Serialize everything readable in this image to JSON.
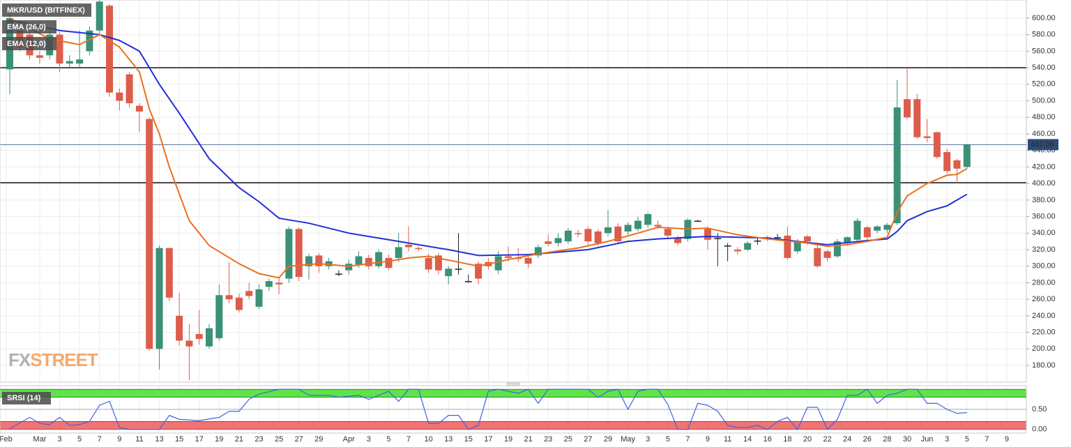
{
  "chart_data": {
    "type": "candlestick",
    "legend": [
      "MKR/USD (BITFINEX)",
      "EMA (26,0)",
      "EMA (12,0)"
    ],
    "watermark": [
      "FX",
      "STREET"
    ],
    "up_color": "#3a9177",
    "down_color": "#dc5d4b",
    "flat_color": "#222222",
    "open": [
      538,
      585,
      580,
      555,
      555,
      580,
      545,
      545,
      560,
      585,
      615,
      510,
      532,
      494,
      478,
      200,
      322,
      240,
      210,
      218,
      203,
      213,
      265,
      262,
      270,
      251,
      275,
      280,
      285,
      345,
      300,
      313,
      300,
      291,
      295,
      302,
      310,
      300,
      310,
      310,
      326,
      322,
      310,
      313,
      288,
      297,
      282,
      303,
      305,
      295,
      312,
      310,
      310,
      313,
      330,
      328,
      330,
      340,
      345,
      342,
      340,
      348,
      342,
      345,
      350,
      350,
      345,
      334,
      333,
      355,
      345,
      334,
      325,
      320,
      320,
      331,
      335,
      335,
      337,
      318,
      336,
      322,
      318,
      312,
      328,
      332,
      347,
      343,
      344,
      352,
      502,
      502,
      457,
      462,
      438,
      428,
      420
    ],
    "high": [
      612,
      590,
      585,
      560,
      585,
      583,
      555,
      585,
      590,
      622,
      617,
      515,
      535,
      497,
      480,
      325,
      322,
      268,
      230,
      247,
      230,
      278,
      305,
      267,
      280,
      278,
      285,
      286,
      348,
      347,
      315,
      316,
      310,
      295,
      308,
      318,
      314,
      320,
      314,
      340,
      348,
      324,
      315,
      316,
      300,
      340,
      290,
      306,
      310,
      318,
      324,
      322,
      314,
      326,
      338,
      340,
      346,
      344,
      348,
      345,
      368,
      352,
      353,
      360,
      365,
      355,
      348,
      337,
      358,
      356,
      348,
      340,
      328,
      323,
      330,
      334,
      337,
      339,
      348,
      333,
      338,
      325,
      320,
      333,
      336,
      358,
      349,
      350,
      352,
      525,
      540,
      508,
      478,
      463,
      442,
      430,
      448
    ],
    "low": [
      508,
      560,
      550,
      545,
      550,
      535,
      540,
      540,
      555,
      580,
      505,
      488,
      492,
      462,
      198,
      175,
      258,
      204,
      162,
      205,
      200,
      210,
      255,
      244,
      260,
      248,
      270,
      266,
      280,
      282,
      284,
      292,
      296,
      288,
      290,
      298,
      296,
      297,
      295,
      305,
      318,
      318,
      292,
      290,
      278,
      290,
      280,
      278,
      296,
      290,
      306,
      305,
      298,
      310,
      324,
      324,
      327,
      335,
      326,
      325,
      336,
      327,
      338,
      342,
      346,
      345,
      334,
      325,
      330,
      354,
      320,
      300,
      306,
      314,
      318,
      326,
      330,
      332,
      308,
      315,
      326,
      298,
      306,
      310,
      325,
      330,
      332,
      340,
      340,
      350,
      478,
      454,
      450,
      430,
      412,
      400,
      418
    ],
    "close": [
      600,
      565,
      555,
      552,
      580,
      545,
      548,
      550,
      585,
      620,
      510,
      500,
      497,
      487,
      200,
      322,
      262,
      210,
      203,
      212,
      225,
      265,
      260,
      247,
      264,
      272,
      282,
      278,
      345,
      287,
      312,
      300,
      306,
      291,
      303,
      312,
      300,
      317,
      298,
      323,
      323,
      321,
      296,
      295,
      297,
      297,
      282,
      285,
      300,
      312,
      310,
      309,
      303,
      323,
      327,
      334,
      343,
      339,
      330,
      328,
      347,
      330,
      350,
      355,
      363,
      348,
      337,
      328,
      356,
      355,
      332,
      334,
      325,
      318,
      328,
      331,
      334,
      335,
      310,
      330,
      330,
      300,
      310,
      330,
      335,
      355,
      335,
      348,
      350,
      492,
      480,
      456,
      455,
      432,
      415,
      418,
      447
    ],
    "series": [
      {
        "name": "EMA (26,0)",
        "color": "#1f2fd6",
        "x": [
          0,
          5,
          9,
          11,
          13,
          15,
          17,
          20,
          23,
          25,
          27,
          30,
          34,
          39,
          44,
          47,
          52,
          58,
          62,
          65,
          70,
          76,
          82,
          86,
          88,
          89,
          90,
          92,
          94,
          96
        ],
        "values": [
          598,
          585,
          580,
          573,
          560,
          520,
          485,
          430,
          395,
          378,
          358,
          352,
          340,
          330,
          320,
          313,
          314,
          320,
          330,
          333,
          336,
          334,
          326,
          331,
          333,
          342,
          355,
          366,
          373,
          387
        ]
      },
      {
        "name": "EMA (12,0)",
        "color": "#e8701f",
        "x": [
          0,
          4,
          7,
          9,
          11,
          13,
          14,
          15,
          16,
          18,
          20,
          23,
          25,
          27,
          28,
          31,
          34,
          38,
          40,
          42,
          45,
          47,
          50,
          53,
          57,
          60,
          63,
          65,
          68,
          70,
          73,
          76,
          80,
          82,
          84,
          86,
          88,
          89,
          90,
          92,
          94,
          95,
          96
        ],
        "values": [
          600,
          575,
          568,
          580,
          565,
          535,
          490,
          460,
          420,
          355,
          325,
          303,
          291,
          286,
          300,
          303,
          300,
          306,
          310,
          312,
          305,
          300,
          308,
          315,
          322,
          330,
          340,
          347,
          345,
          346,
          338,
          333,
          328,
          324,
          326,
          330,
          335,
          365,
          385,
          400,
          410,
          411,
          418
        ]
      }
    ],
    "levels": [
      540,
      401
    ],
    "last_price": {
      "value": 447,
      "label": "447.00"
    },
    "xlim": [
      -0.98,
      101.96
    ],
    "ylim": [
      159.8,
      621.9
    ],
    "yticks": [
      {
        "value": 180,
        "label": "180.00"
      },
      {
        "value": 200,
        "label": "200.00"
      },
      {
        "value": 220,
        "label": "220.00"
      },
      {
        "value": 240,
        "label": "240.00"
      },
      {
        "value": 260,
        "label": "260.00"
      },
      {
        "value": 280,
        "label": "280.00"
      },
      {
        "value": 300,
        "label": "300.00"
      },
      {
        "value": 320,
        "label": "320.00"
      },
      {
        "value": 340,
        "label": "340.00"
      },
      {
        "value": 360,
        "label": "360.00"
      },
      {
        "value": 380,
        "label": "380.00"
      },
      {
        "value": 400,
        "label": "400.00"
      },
      {
        "value": 420,
        "label": "420.00"
      },
      {
        "value": 440,
        "label": "440.00"
      },
      {
        "value": 460,
        "label": "460.00"
      },
      {
        "value": 480,
        "label": "480.00"
      },
      {
        "value": 500,
        "label": "500.00"
      },
      {
        "value": 520,
        "label": "520.00"
      },
      {
        "value": 540,
        "label": "540.00"
      },
      {
        "value": 560,
        "label": "560.00"
      },
      {
        "value": 580,
        "label": "580.00"
      },
      {
        "value": 600,
        "label": "600.00"
      }
    ],
    "xticks": [
      {
        "value": -0.4,
        "label": "Feb"
      },
      {
        "value": 3,
        "label": "Mar"
      },
      {
        "value": 5,
        "label": "3"
      },
      {
        "value": 7,
        "label": "5"
      },
      {
        "value": 9,
        "label": "7"
      },
      {
        "value": 11,
        "label": "9"
      },
      {
        "value": 13,
        "label": "11"
      },
      {
        "value": 15,
        "label": "13"
      },
      {
        "value": 17,
        "label": "15"
      },
      {
        "value": 19,
        "label": "17"
      },
      {
        "value": 21,
        "label": "19"
      },
      {
        "value": 23,
        "label": "21"
      },
      {
        "value": 25,
        "label": "23"
      },
      {
        "value": 27,
        "label": "25"
      },
      {
        "value": 29,
        "label": "27"
      },
      {
        "value": 31,
        "label": "29"
      },
      {
        "value": 34,
        "label": "Apr"
      },
      {
        "value": 36,
        "label": "3"
      },
      {
        "value": 38,
        "label": "5"
      },
      {
        "value": 40,
        "label": "7"
      },
      {
        "value": 42,
        "label": "10"
      },
      {
        "value": 44,
        "label": "13"
      },
      {
        "value": 46,
        "label": "15"
      },
      {
        "value": 48,
        "label": "17"
      },
      {
        "value": 50,
        "label": "19"
      },
      {
        "value": 52,
        "label": "21"
      },
      {
        "value": 54,
        "label": "23"
      },
      {
        "value": 56,
        "label": "25"
      },
      {
        "value": 58,
        "label": "27"
      },
      {
        "value": 60,
        "label": "29"
      },
      {
        "value": 62,
        "label": "May"
      },
      {
        "value": 64,
        "label": "3"
      },
      {
        "value": 66,
        "label": "5"
      },
      {
        "value": 68,
        "label": "7"
      },
      {
        "value": 70,
        "label": "9"
      },
      {
        "value": 72,
        "label": "11"
      },
      {
        "value": 74,
        "label": "14"
      },
      {
        "value": 76,
        "label": "16"
      },
      {
        "value": 78,
        "label": "18"
      },
      {
        "value": 80,
        "label": "20"
      },
      {
        "value": 82,
        "label": "22"
      },
      {
        "value": 84,
        "label": "24"
      },
      {
        "value": 86,
        "label": "26"
      },
      {
        "value": 88,
        "label": "28"
      },
      {
        "value": 90,
        "label": "30"
      },
      {
        "value": 92,
        "label": "Jun"
      },
      {
        "value": 94,
        "label": "3"
      },
      {
        "value": 96,
        "label": "5"
      },
      {
        "value": 98,
        "label": "7"
      },
      {
        "value": 100,
        "label": "9"
      }
    ],
    "grid": true,
    "indicator": {
      "name": "SRSI (14)",
      "color": "#3d63e0",
      "ylim": [
        -0.09,
        1.09
      ],
      "yticks": [
        {
          "value": 0.5,
          "label": "0.50"
        },
        {
          "value": 0,
          "label": "0.00"
        }
      ],
      "upper_band": [
        0.8,
        1.0
      ],
      "upper_color": "#5fe34a",
      "lower_band": [
        0.0,
        0.2
      ],
      "lower_color": "#f27373",
      "x": [
        0,
        2,
        3,
        4,
        5,
        6,
        7,
        8,
        9,
        10,
        11,
        12,
        15,
        16,
        17,
        19,
        21,
        22,
        23,
        24,
        25,
        27,
        29,
        30,
        32,
        33,
        35,
        36,
        38,
        39,
        40,
        41,
        42,
        43,
        44,
        45,
        46,
        47,
        48,
        49,
        51,
        52,
        53,
        54,
        58,
        59,
        60,
        61,
        62,
        63,
        64,
        65,
        66,
        67,
        68,
        69,
        70,
        71,
        72,
        73,
        74,
        75,
        76,
        77,
        78,
        79,
        80,
        81,
        82,
        83,
        84,
        85,
        86,
        87,
        88,
        89,
        90,
        91,
        92,
        93,
        94,
        95,
        96
      ],
      "values": [
        0.02,
        0.3,
        0.15,
        0.12,
        0.3,
        0.1,
        0.12,
        0.2,
        0.6,
        0.7,
        0.05,
        0.0,
        0.0,
        0.35,
        0.25,
        0.22,
        0.3,
        0.45,
        0.45,
        0.75,
        0.88,
        1.0,
        1.0,
        0.85,
        0.85,
        0.8,
        0.85,
        0.75,
        0.95,
        0.7,
        1.0,
        1.0,
        0.15,
        0.15,
        0.35,
        0.35,
        0.0,
        0.1,
        0.95,
        1.0,
        0.9,
        1.0,
        0.65,
        1.0,
        1.0,
        0.8,
        0.95,
        1.0,
        0.5,
        0.95,
        1.0,
        1.0,
        0.62,
        0.0,
        0.0,
        0.65,
        0.6,
        0.45,
        0.1,
        0.05,
        0.05,
        0.1,
        0.0,
        0.2,
        0.3,
        0.0,
        0.55,
        0.55,
        0.0,
        0.25,
        0.85,
        0.85,
        1.0,
        0.65,
        0.85,
        0.9,
        1.0,
        1.0,
        0.65,
        0.65,
        0.5,
        0.4,
        0.42
      ]
    }
  }
}
